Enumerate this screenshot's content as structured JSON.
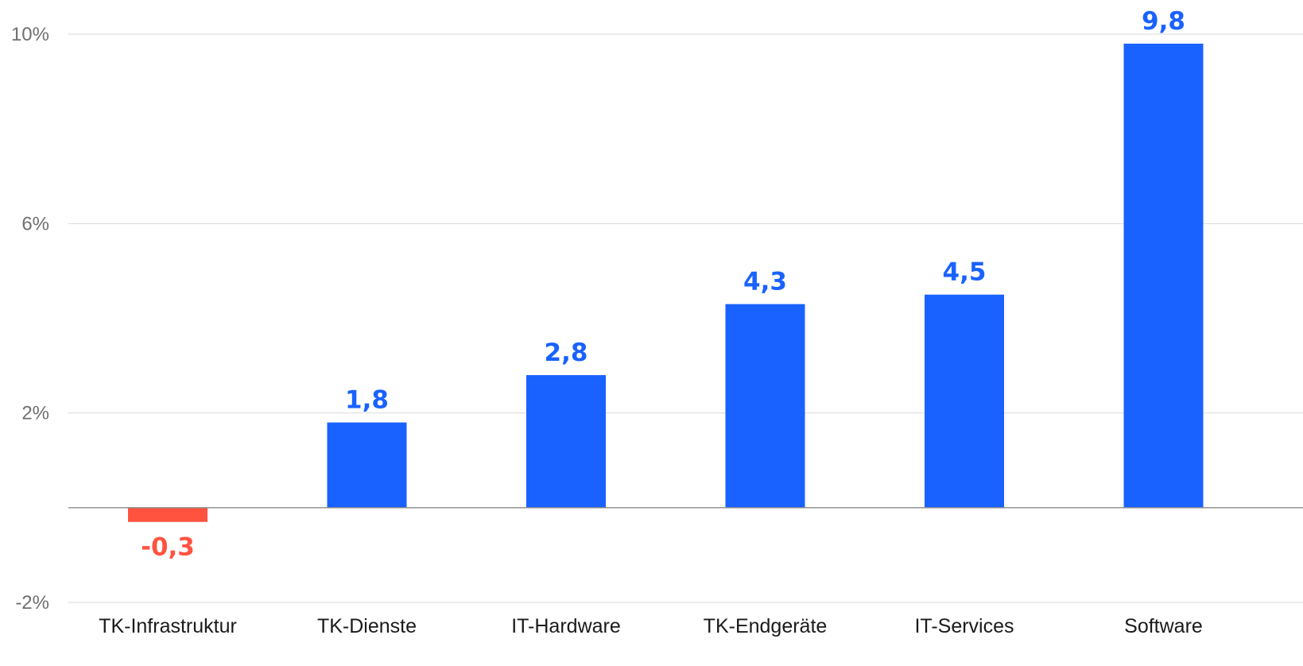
{
  "chart_data": {
    "type": "bar",
    "categories": [
      "TK-Infrastruktur",
      "TK-Dienste",
      "IT-Hardware",
      "TK-Endgeräte",
      "IT-Services",
      "Software"
    ],
    "values": [
      -0.3,
      1.8,
      2.8,
      4.3,
      4.5,
      9.8
    ],
    "value_labels": [
      "-0,3",
      "1,8",
      "2,8",
      "4,3",
      "4,5",
      "9,8"
    ],
    "yticks": [
      {
        "value": -2,
        "label": "-2%"
      },
      {
        "value": 2,
        "label": "2%"
      },
      {
        "value": 6,
        "label": "6%"
      },
      {
        "value": 10,
        "label": "10%"
      }
    ],
    "ylim": [
      -2,
      10
    ],
    "grid": true,
    "colors": {
      "positive": "#1a62ff",
      "negative": "#ff5340",
      "gridline": "#d9d9d9",
      "zeroline": "#8a8a8a"
    }
  }
}
